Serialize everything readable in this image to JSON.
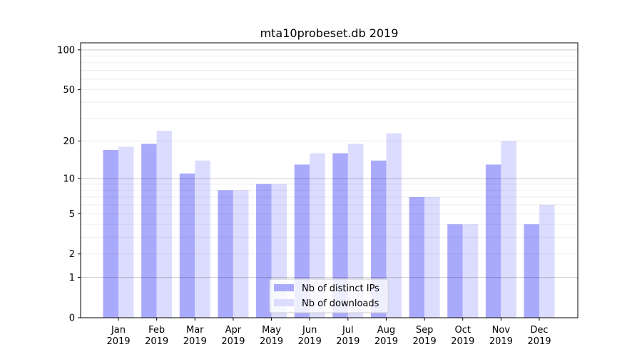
{
  "chart_data": {
    "type": "bar",
    "title": "mta10probeset.db 2019",
    "xlabel": "",
    "ylabel": "",
    "yscale": "log(1+y)",
    "ylim": [
      0,
      113
    ],
    "yticks": [
      0,
      1,
      2,
      5,
      10,
      20,
      50,
      100
    ],
    "grid": true,
    "legend_position": "bottom-center",
    "categories": [
      "Jan\n2019",
      "Feb\n2019",
      "Mar\n2019",
      "Apr\n2019",
      "May\n2019",
      "Jun\n2019",
      "Jul\n2019",
      "Aug\n2019",
      "Sep\n2019",
      "Oct\n2019",
      "Nov\n2019",
      "Dec\n2019"
    ],
    "series": [
      {
        "name": "Nb of distinct IPs",
        "color": "#aaaafc",
        "values": [
          17,
          19,
          11,
          8,
          9,
          13,
          16,
          14,
          7,
          4,
          13,
          4
        ]
      },
      {
        "name": "Nb of downloads",
        "color": "#dcdcfe",
        "values": [
          18,
          24,
          14,
          8,
          9,
          16,
          19,
          23,
          7,
          4,
          20,
          6
        ]
      }
    ]
  }
}
